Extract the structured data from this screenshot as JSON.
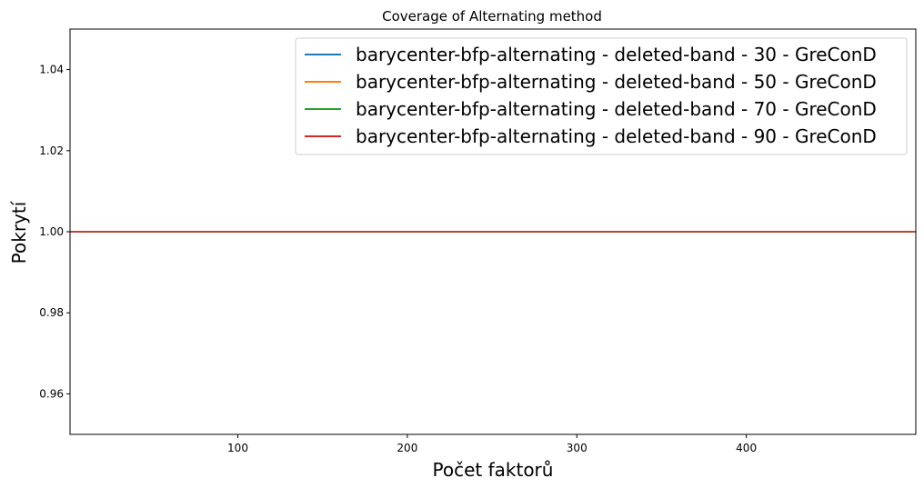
{
  "chart_data": {
    "type": "line",
    "title": "Coverage of Alternating method",
    "xlabel": "Počet faktorů",
    "ylabel": "Pokrytí",
    "xlim": [
      1,
      500
    ],
    "ylim": [
      0.95,
      1.05
    ],
    "xticks": [
      100,
      200,
      300,
      400
    ],
    "xtick_labels": [
      "100",
      "200",
      "300",
      "400"
    ],
    "yticks": [
      0.96,
      0.98,
      1.0,
      1.02,
      1.04
    ],
    "ytick_labels": [
      "0.96",
      "0.98",
      "1.00",
      "1.02",
      "1.04"
    ],
    "grid": false,
    "legend_position": "top-right",
    "series": [
      {
        "name": "barycenter-bfp-alternating - deleted-band - 30 - GreConD",
        "color": "#1f77b4",
        "x": [
          1,
          500
        ],
        "y": [
          1.0,
          1.0
        ]
      },
      {
        "name": "barycenter-bfp-alternating - deleted-band - 50 - GreConD",
        "color": "#ff7f0e",
        "x": [
          1,
          500
        ],
        "y": [
          1.0,
          1.0
        ]
      },
      {
        "name": "barycenter-bfp-alternating - deleted-band - 70 - GreConD",
        "color": "#2ca02c",
        "x": [
          1,
          500
        ],
        "y": [
          1.0,
          1.0
        ]
      },
      {
        "name": "barycenter-bfp-alternating - deleted-band - 90 - GreConD",
        "color": "#d62728",
        "x": [
          1,
          500
        ],
        "y": [
          1.0,
          1.0
        ]
      }
    ]
  }
}
